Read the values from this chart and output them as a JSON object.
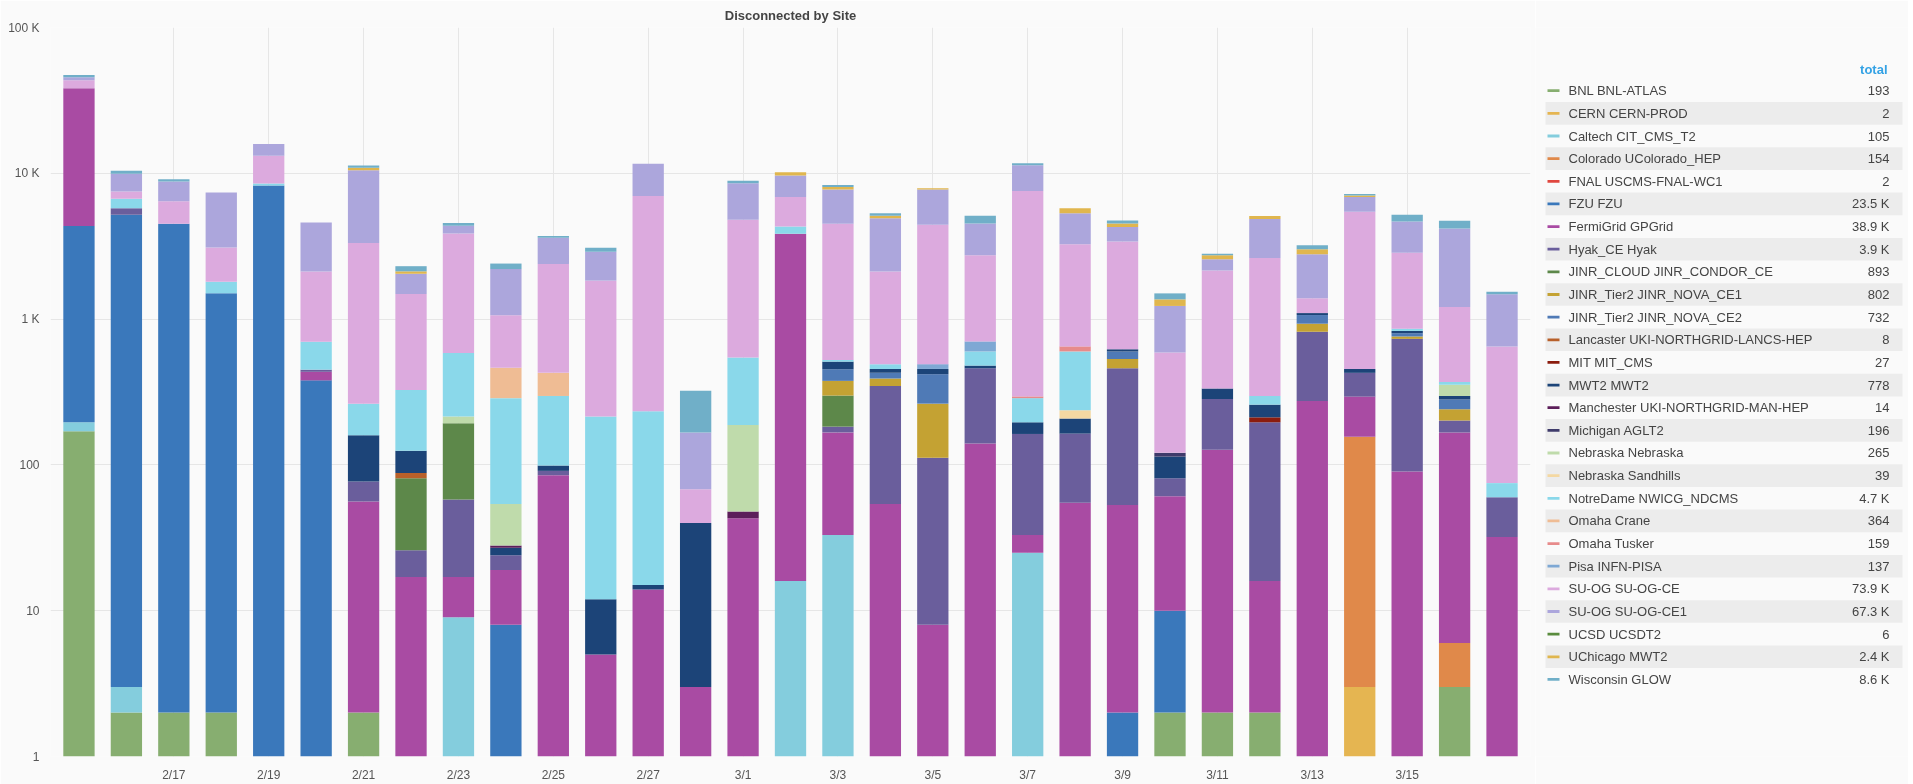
{
  "chart_data": {
    "type": "bar",
    "title": "Disconnected by Site",
    "stacked": true,
    "log": true,
    "grid": true,
    "legend": "right",
    "legend_title": "total",
    "categories": [
      null,
      null,
      "2/17",
      null,
      "2/19",
      null,
      "2/21",
      null,
      "2/23",
      null,
      "2/25",
      null,
      "2/27",
      null,
      "3/1",
      null,
      "3/3",
      null,
      "3/5",
      null,
      "3/7",
      null,
      "3/9",
      null,
      "3/11",
      null,
      "3/13",
      null,
      "3/15",
      null,
      null
    ],
    "ylim": [
      1,
      100000
    ],
    "yticks": [
      1,
      10,
      100,
      {
        "value": 1000,
        "label": "1 K"
      },
      {
        "value": 10000,
        "label": "10 K"
      },
      {
        "value": 100000,
        "label": "100 K"
      }
    ],
    "annotations": [
      "193",
      "2",
      "105",
      "154",
      "2",
      "23.5 K",
      "38.9 K",
      "3.9 K",
      "893",
      "802",
      "732",
      "8",
      "27",
      "778",
      "14",
      "196",
      "265",
      "39",
      "4.7 K",
      "364",
      "159",
      "137",
      "73.9 K",
      "67.3 K",
      "6",
      "2.4 K",
      "8.6 K"
    ],
    "series": [
      {
        "name": "BNL BNL-ATLAS",
        "color": "#87ae70",
        "values": [
          170,
          2,
          2,
          2,
          null,
          null,
          2,
          null,
          null,
          null,
          null,
          null,
          null,
          null,
          null,
          null,
          null,
          null,
          null,
          null,
          null,
          null,
          null,
          2,
          2,
          2,
          null,
          null,
          null,
          3,
          null
        ]
      },
      {
        "name": "CERN CERN-PROD",
        "color": "#e5b551",
        "values": [
          null,
          null,
          null,
          null,
          null,
          null,
          null,
          null,
          null,
          null,
          null,
          null,
          null,
          null,
          null,
          null,
          null,
          null,
          null,
          null,
          null,
          null,
          null,
          null,
          null,
          null,
          null,
          3,
          null,
          null,
          null
        ]
      },
      {
        "name": "Caltech CIT_CMS_T2",
        "color": "#84cddd",
        "values": [
          26,
          1,
          null,
          null,
          null,
          null,
          null,
          null,
          9,
          null,
          null,
          null,
          null,
          null,
          null,
          16,
          33,
          null,
          null,
          null,
          25,
          null,
          null,
          null,
          null,
          null,
          null,
          null,
          null,
          null,
          null
        ]
      },
      {
        "name": "Colorado UColorado_HEP",
        "color": "#e0894a",
        "values": [
          null,
          null,
          null,
          null,
          null,
          null,
          null,
          null,
          null,
          null,
          null,
          null,
          null,
          null,
          null,
          null,
          null,
          null,
          null,
          null,
          null,
          null,
          null,
          null,
          null,
          null,
          null,
          153,
          null,
          3,
          null
        ]
      },
      {
        "name": "FNAL USCMS-FNAL-WC1",
        "color": "#e0473f",
        "values": [
          null,
          null,
          null,
          null,
          null,
          null,
          null,
          null,
          null,
          null,
          null,
          null,
          null,
          null,
          null,
          null,
          null,
          null,
          null,
          null,
          null,
          null,
          null,
          null,
          null,
          null,
          null,
          null,
          null,
          null,
          null
        ]
      },
      {
        "name": "FZU FZU",
        "color": "#3a78bb",
        "values": [
          4160,
          5200,
          4500,
          1500,
          8260,
          380,
          null,
          null,
          null,
          8,
          null,
          null,
          null,
          null,
          null,
          null,
          null,
          null,
          null,
          null,
          null,
          null,
          2,
          8,
          null,
          null,
          null,
          null,
          null,
          null,
          null
        ]
      },
      {
        "name": "FermiGrid GPGrid",
        "color": "#a94ba3",
        "values": [
          33900,
          null,
          null,
          null,
          null,
          55,
          54,
          17,
          8,
          11,
          85,
          5,
          14,
          3,
          43,
          3840,
          134,
          54,
          8,
          140,
          8,
          55,
          51,
          51,
          125,
          14,
          274,
          138,
          90,
          161,
          32
        ]
      },
      {
        "name": "Hyak_CE Hyak",
        "color": "#6a5e9c",
        "values": [
          null,
          550,
          null,
          null,
          null,
          15,
          21,
          9,
          41,
          5,
          6,
          null,
          null,
          null,
          null,
          null,
          16,
          294,
          104,
          320,
          130,
          109,
          407,
          20,
          156,
          180,
          545,
          134,
          642,
          35,
          28
        ]
      },
      {
        "name": "JINR_CLOUD JINR_CONDOR_CE",
        "color": "#5d884a",
        "values": [
          null,
          null,
          null,
          null,
          null,
          null,
          null,
          55,
          135,
          null,
          null,
          null,
          null,
          null,
          null,
          null,
          116,
          null,
          null,
          null,
          null,
          null,
          null,
          null,
          null,
          null,
          null,
          null,
          null,
          null,
          null
        ]
      },
      {
        "name": "JINR_Tier2 JINR_NOVA_CE1",
        "color": "#c4a233",
        "values": [
          null,
          null,
          null,
          null,
          null,
          null,
          null,
          null,
          null,
          null,
          null,
          null,
          null,
          null,
          null,
          null,
          78,
          44,
          151,
          null,
          null,
          null,
          72,
          null,
          null,
          null,
          111,
          null,
          28,
          39,
          null
        ]
      },
      {
        "name": "JINR_Tier2 JINR_NOVA_CE2",
        "color": "#4f7ab6",
        "values": [
          null,
          null,
          null,
          null,
          null,
          null,
          null,
          null,
          null,
          null,
          null,
          null,
          null,
          null,
          null,
          null,
          76,
          36,
          156,
          null,
          null,
          null,
          68,
          null,
          null,
          null,
          136,
          null,
          40,
          40,
          null
        ]
      },
      {
        "name": "Lancaster UKI-NORTHGRID-LANCS-HEP",
        "color": "#b8602a",
        "values": [
          null,
          null,
          null,
          null,
          null,
          null,
          null,
          7,
          null,
          null,
          null,
          null,
          null,
          null,
          null,
          null,
          null,
          null,
          null,
          null,
          null,
          null,
          null,
          null,
          null,
          null,
          null,
          null,
          null,
          null,
          null
        ]
      },
      {
        "name": "MIT MIT_CMS",
        "color": "#8b1c0e",
        "values": [
          null,
          null,
          null,
          null,
          null,
          null,
          null,
          null,
          null,
          null,
          null,
          null,
          null,
          null,
          null,
          null,
          null,
          null,
          null,
          null,
          null,
          null,
          null,
          null,
          null,
          16,
          null,
          null,
          null,
          null,
          null
        ]
      },
      {
        "name": "MWT2 MWT2",
        "color": "#1c4478",
        "values": [
          null,
          null,
          null,
          null,
          null,
          null,
          83,
          37,
          null,
          3,
          8,
          7,
          1,
          37,
          null,
          null,
          58,
          27,
          36,
          20,
          33,
          44,
          20,
          33,
          51,
          47,
          34,
          27,
          30,
          16,
          null
        ]
      },
      {
        "name": "Manchester UKI-NORTHGRID-MAN-HEP",
        "color": "#5c1e5a",
        "values": [
          null,
          null,
          null,
          null,
          null,
          null,
          null,
          null,
          null,
          1,
          null,
          null,
          null,
          null,
          5,
          null,
          null,
          null,
          null,
          null,
          null,
          null,
          null,
          null,
          null,
          null,
          null,
          null,
          null,
          null,
          null
        ]
      },
      {
        "name": "Michigan AGLT2",
        "color": "#3f3b6b",
        "values": [
          null,
          null,
          null,
          null,
          null,
          null,
          null,
          null,
          null,
          null,
          null,
          null,
          null,
          null,
          null,
          null,
          null,
          null,
          null,
          null,
          null,
          null,
          null,
          7,
          null,
          null,
          null,
          null,
          null,
          null,
          null
        ]
      },
      {
        "name": "Nebraska Nebraska",
        "color": "#bfdbab",
        "values": [
          null,
          null,
          null,
          null,
          null,
          null,
          null,
          null,
          22,
          26,
          null,
          null,
          null,
          null,
          140,
          null,
          null,
          null,
          null,
          null,
          null,
          null,
          null,
          null,
          null,
          null,
          null,
          null,
          null,
          57,
          null
        ]
      },
      {
        "name": "Nebraska Sandhills",
        "color": "#f4d8a2",
        "values": [
          null,
          null,
          null,
          null,
          null,
          null,
          null,
          null,
          null,
          null,
          null,
          null,
          null,
          null,
          null,
          null,
          null,
          null,
          null,
          null,
          null,
          29,
          null,
          null,
          null,
          null,
          null,
          null,
          null,
          null,
          null
        ]
      },
      {
        "name": "NotreDame NWICG_NDCMS",
        "color": "#8ad8ea",
        "values": [
          null,
          940,
          null,
          300,
          240,
          250,
          103,
          201,
          370,
          233,
          198,
          203,
          218,
          null,
          357,
          460,
          14,
          36,
          null,
          120,
          91,
          363,
          null,
          null,
          null,
          38,
          null,
          null,
          30,
          16,
          15
        ]
      },
      {
        "name": "Omaha Crane",
        "color": "#efbc94",
        "values": [
          null,
          null,
          null,
          null,
          null,
          null,
          null,
          null,
          null,
          177,
          131,
          null,
          null,
          null,
          null,
          null,
          null,
          null,
          null,
          null,
          null,
          null,
          null,
          null,
          null,
          null,
          null,
          null,
          null,
          null,
          null
        ]
      },
      {
        "name": "Omaha Tusker",
        "color": "#e78b8b",
        "values": [
          null,
          null,
          null,
          null,
          null,
          null,
          null,
          null,
          null,
          null,
          null,
          null,
          null,
          null,
          null,
          null,
          null,
          null,
          null,
          null,
          8,
          50,
          null,
          null,
          null,
          null,
          null,
          null,
          null,
          null,
          null
        ]
      },
      {
        "name": "Pisa INFN-PISA",
        "color": "#7ea8d4",
        "values": [
          null,
          null,
          null,
          null,
          null,
          null,
          null,
          null,
          null,
          null,
          null,
          null,
          null,
          null,
          null,
          null,
          null,
          null,
          36,
          103,
          null,
          null,
          null,
          null,
          null,
          null,
          null,
          null,
          null,
          null,
          null
        ]
      },
      {
        "name": "SU-OG SU-OG-CE",
        "color": "#dcaade",
        "values": [
          5200,
          800,
          1940,
          1290,
          4700,
          1420,
          3060,
          1160,
          3280,
          600,
          1960,
          1620,
          6750,
          28,
          4260,
          2550,
          3980,
          1630,
          3940,
          2040,
          7270,
          2610,
          2780,
          470,
          1820,
          2330,
          290,
          5000,
          1990,
          840,
          575
        ]
      },
      {
        "name": "SU-OG SU-OG-CE1",
        "color": "#aca6dc",
        "values": [
          2200,
          2430,
          2360,
          4290,
          2700,
          2480,
          7180,
          560,
          500,
          1140,
          1230,
          1060,
          4640,
          99,
          3730,
          2810,
          3240,
          2790,
          3310,
          1790,
          3810,
          2060,
          890,
          640,
          420,
          2240,
          1390,
          1420,
          1830,
          2980,
          830
        ]
      },
      {
        "name": "UCSD UCSDT2",
        "color": "#5a8c3e",
        "values": [
          null,
          null,
          null,
          null,
          null,
          null,
          null,
          null,
          null,
          null,
          null,
          null,
          null,
          null,
          null,
          null,
          null,
          null,
          null,
          null,
          null,
          null,
          null,
          null,
          null,
          null,
          null,
          null,
          null,
          null,
          null
        ]
      },
      {
        "name": "UChicago MWT2",
        "color": "#e0b64e",
        "values": [
          null,
          null,
          null,
          null,
          null,
          null,
          400,
          80,
          null,
          null,
          null,
          null,
          null,
          null,
          null,
          500,
          320,
          210,
          160,
          null,
          null,
          440,
          240,
          135,
          170,
          220,
          230,
          170,
          null,
          null,
          null
        ]
      },
      {
        "name": "Wisconsin GLOW",
        "color": "#70afc8",
        "values": [
          1500,
          470,
          300,
          null,
          null,
          null,
          400,
          180,
          200,
          200,
          100,
          190,
          null,
          155,
          370,
          null,
          240,
          210,
          null,
          580,
          330,
          null,
          220,
          135,
          60,
          null,
          200,
          160,
          510,
          530,
          60
        ]
      }
    ]
  }
}
